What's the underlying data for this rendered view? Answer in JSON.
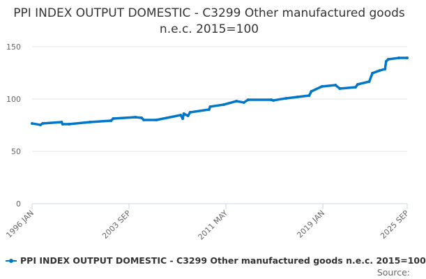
{
  "chart_data": {
    "type": "line",
    "title": "PPI INDEX OUTPUT DOMESTIC - C3299 Other manufactured goods n.e.c. 2015=100",
    "xlabel": "",
    "ylabel": "",
    "ylim": [
      0,
      150
    ],
    "yticks": [
      0,
      50,
      100,
      150
    ],
    "xlim": [
      "1996-01",
      "2025-09"
    ],
    "xtick_labels": [
      {
        "date": "1996-01",
        "label": "1996 JAN"
      },
      {
        "date": "2003-09",
        "label": "2003 SEP"
      },
      {
        "date": "2011-05",
        "label": "2011 MAY"
      },
      {
        "date": "2019-01",
        "label": "2019 JAN"
      },
      {
        "date": "2025-09",
        "label": "2025 SEP"
      }
    ],
    "grid": true,
    "legend_position": "bottom",
    "series": [
      {
        "name": "PPI INDEX OUTPUT DOMESTIC - C3299 Other manufactured goods n.e.c. 2015=100",
        "color": "#0077c8",
        "points": [
          [
            "1996-01",
            76.7
          ],
          [
            "1996-09",
            75.3
          ],
          [
            "1996-11",
            76.7
          ],
          [
            "1998-05",
            78.0
          ],
          [
            "1998-06",
            76.0
          ],
          [
            "1998-12",
            76.0
          ],
          [
            "2000-08",
            78.0
          ],
          [
            "2002-04",
            79.3
          ],
          [
            "2002-06",
            81.3
          ],
          [
            "2004-03",
            82.7
          ],
          [
            "2004-09",
            82.0
          ],
          [
            "2004-11",
            80.0
          ],
          [
            "2005-11",
            80.0
          ],
          [
            "2007-10",
            84.7
          ],
          [
            "2007-12",
            81.3
          ],
          [
            "2008-01",
            86.0
          ],
          [
            "2008-05",
            84.0
          ],
          [
            "2008-07",
            87.3
          ],
          [
            "2010-01",
            90.0
          ],
          [
            "2010-02",
            92.7
          ],
          [
            "2011-03",
            94.7
          ],
          [
            "2012-03",
            98.0
          ],
          [
            "2012-10",
            96.7
          ],
          [
            "2013-02",
            99.3
          ],
          [
            "2014-12",
            99.3
          ],
          [
            "2015-02",
            98.7
          ],
          [
            "2016-02",
            100.7
          ],
          [
            "2017-01",
            102.0
          ],
          [
            "2017-12",
            103.3
          ],
          [
            "2018-02",
            107.3
          ],
          [
            "2018-12",
            112.0
          ],
          [
            "2020-01",
            113.3
          ],
          [
            "2020-05",
            110.0
          ],
          [
            "2021-08",
            111.3
          ],
          [
            "2021-10",
            114.0
          ],
          [
            "2022-09",
            116.7
          ],
          [
            "2022-12",
            124.7
          ],
          [
            "2023-07",
            127.3
          ],
          [
            "2023-12",
            128.7
          ],
          [
            "2024-01",
            136.0
          ],
          [
            "2024-03",
            138.0
          ],
          [
            "2025-01",
            139.3
          ],
          [
            "2025-09",
            139.3
          ]
        ]
      }
    ]
  },
  "source_label": "Source:"
}
